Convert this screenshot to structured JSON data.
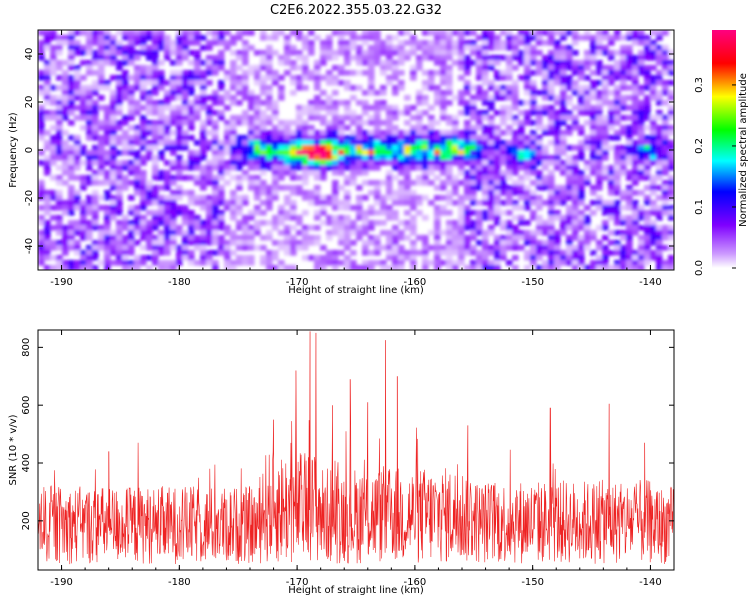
{
  "title": "C2E6.2022.355.03.22.G32",
  "chart_data": [
    {
      "type": "heatmap",
      "xlabel": "Height of straight line (km)",
      "ylabel": "Frequency (Hz)",
      "xlim": [
        -192,
        -138
      ],
      "ylim": [
        -50,
        50
      ],
      "xticks": [
        -190,
        -180,
        -170,
        -160,
        -150,
        -140
      ],
      "yticks": [
        -40,
        -20,
        0,
        20,
        40
      ],
      "colorbar": {
        "label": "Normalized spectral amplitude",
        "range": [
          0.0,
          0.39
        ],
        "ticks": [
          0.0,
          0.1,
          0.2,
          0.3
        ],
        "tick_labels": [
          "0.0",
          "0.1",
          "0.2",
          "0.3"
        ]
      },
      "features": [
        {
          "x_range": [
            -173,
            -156
          ],
          "frequency": 0,
          "amplitude": 0.25
        },
        {
          "x": -168.5,
          "frequency": -2,
          "amplitude": 0.33
        },
        {
          "x": -151,
          "frequency": -2,
          "amplitude": 0.15
        },
        {
          "x": -140,
          "frequency": 0,
          "amplitude": 0.15
        }
      ]
    },
    {
      "type": "line",
      "xlabel": "Height of straight line (km)",
      "ylabel": "SNR (10 * v/v)",
      "xlim": [
        -192,
        -138
      ],
      "ylim": [
        30,
        860
      ],
      "xticks": [
        -190,
        -180,
        -170,
        -160,
        -150,
        -140
      ],
      "yticks": [
        200,
        400,
        600,
        800
      ],
      "series": [
        {
          "color": "#ee2222",
          "baseline_range": [
            50,
            320
          ],
          "peaks": [
            {
              "x": -168.9,
              "y": 855
            },
            {
              "x": -168.4,
              "y": 850
            },
            {
              "x": -162.5,
              "y": 825
            },
            {
              "x": -165.5,
              "y": 690
            },
            {
              "x": -170.1,
              "y": 720
            },
            {
              "x": -161.5,
              "y": 700
            },
            {
              "x": -167.0,
              "y": 600
            },
            {
              "x": -143.5,
              "y": 605
            },
            {
              "x": -164.0,
              "y": 610
            },
            {
              "x": -148.5,
              "y": 590
            },
            {
              "x": -172.0,
              "y": 550
            },
            {
              "x": -186.0,
              "y": 440
            },
            {
              "x": -183.5,
              "y": 470
            },
            {
              "x": -155.5,
              "y": 530
            },
            {
              "x": -140.5,
              "y": 470
            }
          ]
        }
      ]
    }
  ],
  "colors": {
    "colormap": [
      "#ffffff",
      "#7f00ff",
      "#0000ff",
      "#00ffff",
      "#00ff00",
      "#ffff00",
      "#ff0000",
      "#ff0080"
    ],
    "line": "#ee2222",
    "frame": "#000000"
  }
}
